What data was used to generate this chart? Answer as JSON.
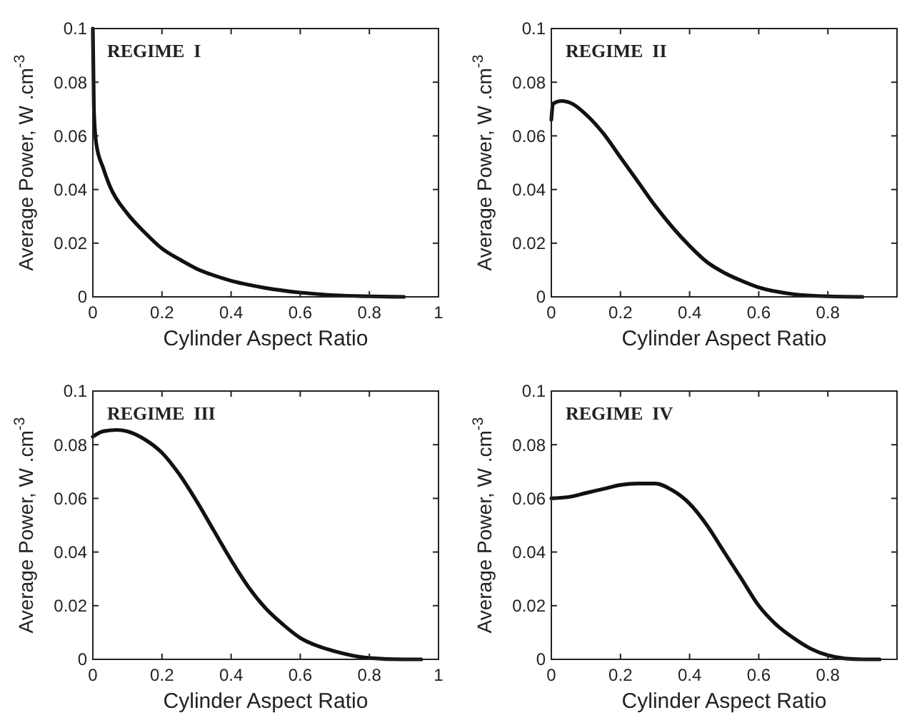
{
  "chart_data": [
    {
      "type": "line",
      "xlabel": "Cylinder Aspect Ratio",
      "ylabel": "Average Power, W .cm$^{-3}$",
      "annotations": [
        "REGIME  I"
      ],
      "xlim": [
        0,
        1
      ],
      "ylim": [
        0,
        0.1
      ],
      "xticks": [
        0,
        0.2,
        0.4,
        0.6,
        0.8,
        1
      ],
      "yticks": [
        0,
        0.02,
        0.04,
        0.06,
        0.08,
        0.1
      ],
      "grid": false,
      "series": [
        {
          "color": "#111111",
          "x": [
            0,
            0.003,
            0.01,
            0.03,
            0.05,
            0.1,
            0.15,
            0.2,
            0.25,
            0.3,
            0.35,
            0.4,
            0.45,
            0.5,
            0.6,
            0.7,
            0.8,
            0.9
          ],
          "values": [
            0.1,
            0.07,
            0.057,
            0.048,
            0.041,
            0.031,
            0.024,
            0.018,
            0.014,
            0.0105,
            0.008,
            0.006,
            0.0045,
            0.0033,
            0.0016,
            0.0006,
            0.0002,
            0
          ]
        }
      ]
    },
    {
      "type": "line",
      "xlabel": "Cylinder Aspect Ratio",
      "ylabel": "Average Power, W .cm$^{-3}$",
      "annotations": [
        "REGIME  II"
      ],
      "xlim": [
        0,
        1
      ],
      "ylim": [
        0,
        0.1
      ],
      "xticks": [
        0,
        0.2,
        0.4,
        0.6,
        0.8
      ],
      "yticks": [
        0,
        0.02,
        0.04,
        0.06,
        0.08,
        0.1
      ],
      "grid": false,
      "series": [
        {
          "color": "#111111",
          "x": [
            0,
            0.005,
            0.03,
            0.06,
            0.1,
            0.15,
            0.2,
            0.25,
            0.3,
            0.35,
            0.4,
            0.45,
            0.5,
            0.55,
            0.6,
            0.7,
            0.8,
            0.9
          ],
          "values": [
            0.066,
            0.072,
            0.073,
            0.072,
            0.068,
            0.061,
            0.052,
            0.043,
            0.034,
            0.026,
            0.019,
            0.013,
            0.009,
            0.006,
            0.0035,
            0.001,
            0.0002,
            0
          ]
        }
      ]
    },
    {
      "type": "line",
      "xlabel": "Cylinder Aspect Ratio",
      "ylabel": "Average Power, W .cm$^{-3}$",
      "annotations": [
        "REGIME  III"
      ],
      "xlim": [
        0,
        1
      ],
      "ylim": [
        0,
        0.1
      ],
      "xticks": [
        0,
        0.2,
        0.4,
        0.6,
        0.8,
        1
      ],
      "yticks": [
        0,
        0.02,
        0.04,
        0.06,
        0.08,
        0.1
      ],
      "grid": false,
      "series": [
        {
          "color": "#111111",
          "x": [
            0,
            0.03,
            0.07,
            0.1,
            0.15,
            0.2,
            0.25,
            0.3,
            0.35,
            0.4,
            0.45,
            0.5,
            0.55,
            0.6,
            0.65,
            0.7,
            0.8,
            0.9,
            0.95
          ],
          "values": [
            0.083,
            0.085,
            0.0855,
            0.085,
            0.082,
            0.077,
            0.069,
            0.059,
            0.048,
            0.037,
            0.027,
            0.019,
            0.013,
            0.008,
            0.005,
            0.003,
            0.0005,
            0,
            0
          ]
        }
      ]
    },
    {
      "type": "line",
      "xlabel": "Cylinder Aspect Ratio",
      "ylabel": "Average Power, W .cm$^{-3}$",
      "annotations": [
        "REGIME  IV"
      ],
      "xlim": [
        0,
        1
      ],
      "ylim": [
        0,
        0.1
      ],
      "xticks": [
        0,
        0.2,
        0.4,
        0.6,
        0.8
      ],
      "yticks": [
        0,
        0.02,
        0.04,
        0.06,
        0.08,
        0.1
      ],
      "grid": false,
      "series": [
        {
          "color": "#111111",
          "x": [
            0,
            0.05,
            0.1,
            0.15,
            0.2,
            0.25,
            0.3,
            0.35,
            0.4,
            0.45,
            0.5,
            0.55,
            0.6,
            0.65,
            0.7,
            0.75,
            0.8,
            0.85,
            0.9,
            0.95
          ],
          "values": [
            0.06,
            0.0605,
            0.062,
            0.0635,
            0.065,
            0.0655,
            0.0655,
            0.063,
            0.058,
            0.05,
            0.04,
            0.03,
            0.02,
            0.013,
            0.008,
            0.004,
            0.0015,
            0.0003,
            0,
            0
          ]
        }
      ]
    }
  ]
}
